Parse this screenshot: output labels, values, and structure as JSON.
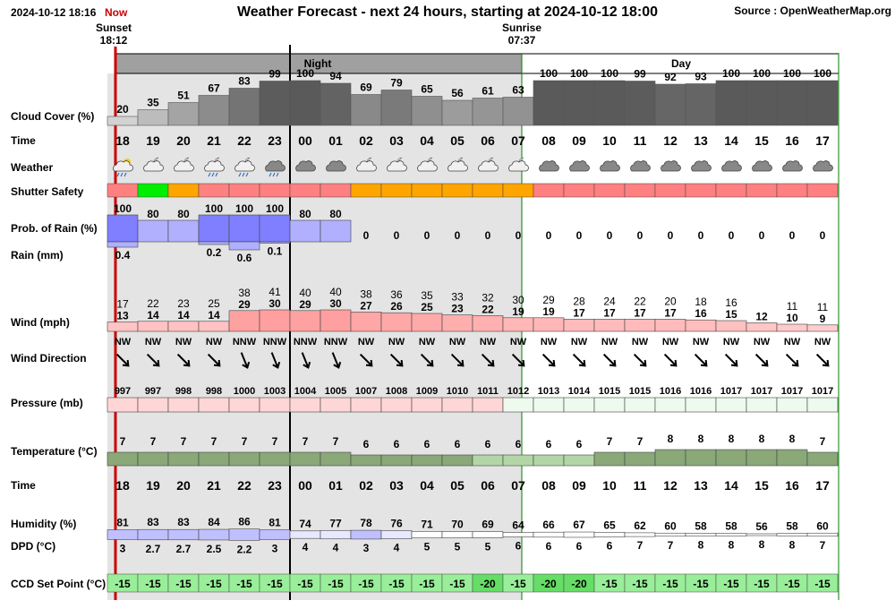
{
  "header": {
    "datetime": "2024-10-12 18:16",
    "now_label": "Now",
    "title": "Weather Forecast - next 24 hours, starting at 2024-10-12 18:00",
    "source": "Source : OpenWeatherMap.org",
    "sunset_label": "Sunset",
    "sunset_time": "18:12",
    "sunrise_label": "Sunrise",
    "sunrise_time": "07:37",
    "night_label": "Night",
    "day_label": "Day"
  },
  "row_labels": {
    "cloud": "Cloud Cover (%)",
    "time": "Time",
    "weather": "Weather",
    "shutter": "Shutter Safety",
    "rain_prob": "Prob. of Rain (%)",
    "rain_mm": "Rain (mm)",
    "wind": "Wind (mph)",
    "wind_dir": "Wind Direction",
    "pressure": "Pressure (mb)",
    "temperature": "Temperature (°C)",
    "humidity": "Humidity (%)",
    "dpd": "DPD (°C)",
    "ccd": "CCD Set Point (°C)"
  },
  "colors": {
    "night_bg": "#e4e4e4",
    "cloud_low": "#d2d2d2",
    "cloud_high": "#5a5a5a",
    "rain": "#7f7fff",
    "rain_light": "#b0b0ff",
    "wind": "#ff9f9f",
    "pressure": "#ffd6d6",
    "pressure_high": "#eefaee",
    "temp": "#8aa878",
    "temp_light": "#b3d6a6",
    "ccd": "#99ee99",
    "shutter_red": "#ff8080",
    "shutter_orange": "#ffa500",
    "shutter_green": "#00ee00",
    "now_line": "#cc0000",
    "day_border": "#008000"
  },
  "chart_data": {
    "type": "table",
    "hours": [
      "18",
      "19",
      "20",
      "21",
      "22",
      "23",
      "00",
      "01",
      "02",
      "03",
      "04",
      "05",
      "06",
      "07",
      "08",
      "09",
      "10",
      "11",
      "12",
      "13",
      "14",
      "15",
      "16",
      "17"
    ],
    "cloud_cover": [
      20,
      35,
      51,
      67,
      83,
      99,
      100,
      94,
      69,
      79,
      65,
      56,
      61,
      63,
      100,
      100,
      100,
      99,
      92,
      93,
      100,
      100,
      100,
      100
    ],
    "weather_icons": [
      "rain-sun-icon",
      "cloud-moon-icon",
      "cloud-moon-icon",
      "rain-moon-icon",
      "rain-moon-icon",
      "rain-cloud-icon",
      "cloud-icon",
      "cloud-icon",
      "cloud-moon-icon",
      "cloud-moon-icon",
      "cloud-moon-icon",
      "cloud-moon-icon",
      "cloud-moon-icon",
      "cloud-moon-icon",
      "cloud-icon",
      "cloud-icon",
      "cloud-icon",
      "cloud-icon",
      "cloud-icon",
      "cloud-icon",
      "cloud-icon",
      "cloud-icon",
      "cloud-icon",
      "cloud-icon"
    ],
    "shutter_safety": [
      "red",
      "green",
      "orange",
      "red",
      "red",
      "red",
      "red",
      "red",
      "orange",
      "orange",
      "orange",
      "orange",
      "orange",
      "orange",
      "red",
      "red",
      "red",
      "red",
      "red",
      "red",
      "red",
      "red",
      "red",
      "red"
    ],
    "rain_probability": [
      100,
      80,
      80,
      100,
      100,
      100,
      80,
      80,
      0,
      0,
      0,
      0,
      0,
      0,
      0,
      0,
      0,
      0,
      0,
      0,
      0,
      0,
      0,
      0
    ],
    "rain_mm": [
      "0.4",
      "",
      "",
      "0.2",
      "0.6",
      "0.1",
      "",
      "",
      "",
      "",
      "",
      "",
      "",
      "",
      "",
      "",
      "",
      "",
      "",
      "",
      "",
      "",
      "",
      ""
    ],
    "rain_mm_values": [
      0.4,
      0,
      0,
      0.2,
      0.6,
      0.1,
      0,
      0,
      0,
      0,
      0,
      0,
      0,
      0,
      0,
      0,
      0,
      0,
      0,
      0,
      0,
      0,
      0,
      0
    ],
    "wind_gust": [
      17,
      22,
      23,
      25,
      38,
      41,
      40,
      40,
      38,
      36,
      35,
      33,
      32,
      30,
      29,
      28,
      24,
      22,
      20,
      18,
      16,
      null,
      11,
      11
    ],
    "wind_speed": [
      13,
      14,
      14,
      14,
      29,
      30,
      29,
      30,
      27,
      26,
      25,
      23,
      22,
      19,
      19,
      17,
      17,
      17,
      17,
      16,
      15,
      12,
      10,
      9
    ],
    "wind_direction": [
      "NW",
      "NW",
      "NW",
      "NW",
      "NNW",
      "NNW",
      "NNW",
      "NNW",
      "NW",
      "NW",
      "NW",
      "NW",
      "NW",
      "NW",
      "NW",
      "NW",
      "NW",
      "NW",
      "NW",
      "NW",
      "NW",
      "NW",
      "NW",
      "NW"
    ],
    "wind_arrow_deg": [
      -45,
      -45,
      -45,
      -45,
      -22,
      -22,
      -22,
      -22,
      -45,
      -45,
      -45,
      -45,
      -45,
      -45,
      -45,
      -45,
      -45,
      -45,
      -45,
      -45,
      -45,
      -45,
      -45,
      -45
    ],
    "pressure": [
      997,
      997,
      998,
      998,
      1000,
      1003,
      1004,
      1005,
      1007,
      1008,
      1009,
      1010,
      1011,
      1012,
      1013,
      1014,
      1015,
      1015,
      1016,
      1016,
      1017,
      1017,
      1017,
      1017
    ],
    "temperature": [
      7,
      7,
      7,
      7,
      7,
      7,
      7,
      7,
      6,
      6,
      6,
      6,
      6,
      6,
      6,
      6,
      7,
      7,
      8,
      8,
      8,
      8,
      8,
      7
    ],
    "humidity": [
      81,
      83,
      83,
      84,
      86,
      81,
      74,
      77,
      78,
      76,
      71,
      70,
      69,
      64,
      66,
      67,
      65,
      62,
      60,
      58,
      58,
      56,
      58,
      60
    ],
    "dpd": [
      "3",
      "2.7",
      "2.7",
      "2.5",
      "2.2",
      "3",
      "4",
      "4",
      "3",
      "4",
      "5",
      "5",
      "5",
      "6",
      "6",
      "6",
      "6",
      "7",
      "7",
      "8",
      "8",
      "8",
      "8",
      "7"
    ],
    "ccd_set_point": [
      -15,
      -15,
      -15,
      -15,
      -15,
      -15,
      -15,
      -15,
      -15,
      -15,
      -15,
      -15,
      -20,
      -15,
      -20,
      -20,
      -15,
      -15,
      -15,
      -15,
      -15,
      -15,
      -15,
      -15
    ]
  }
}
